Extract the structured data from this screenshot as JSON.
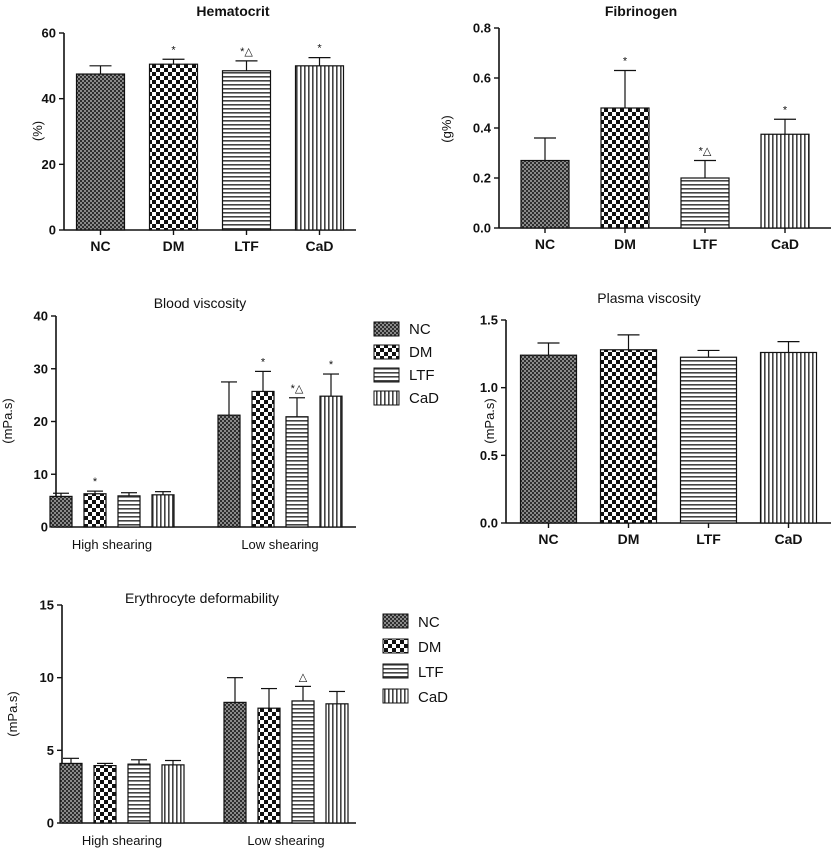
{
  "chart_data": [
    {
      "id": "hematocrit",
      "type": "bar",
      "title": "Hematocrit",
      "ylabel": "(%)",
      "ylim": [
        0,
        60
      ],
      "yticks": [
        0,
        20,
        40,
        60
      ],
      "ytick_labels": [
        "0",
        "20",
        "40",
        "60"
      ],
      "categories": [
        "NC",
        "DM",
        "LTF",
        "CaD"
      ],
      "series": [
        {
          "name": "Hematocrit",
          "values": [
            47.5,
            50.5,
            48.5,
            50.0
          ],
          "errors": [
            2.5,
            1.5,
            3.0,
            2.5
          ],
          "annotations": [
            "",
            "*",
            "*△",
            "*"
          ]
        }
      ]
    },
    {
      "id": "fibrinogen",
      "type": "bar",
      "title": "Fibrinogen",
      "ylabel": "(g%)",
      "ylim": [
        0,
        0.8
      ],
      "yticks": [
        0,
        0.2,
        0.4,
        0.6,
        0.8
      ],
      "ytick_labels": [
        "0.0",
        "0.2",
        "0.4",
        "0.6",
        "0.8"
      ],
      "categories": [
        "NC",
        "DM",
        "LTF",
        "CaD"
      ],
      "series": [
        {
          "name": "Fibrinogen",
          "values": [
            0.27,
            0.48,
            0.2,
            0.375
          ],
          "errors": [
            0.09,
            0.15,
            0.07,
            0.06
          ],
          "annotations": [
            "",
            "*",
            "*△",
            "*"
          ]
        }
      ]
    },
    {
      "id": "blood-viscosity",
      "type": "bar",
      "title": "Blood viscosity",
      "ylabel": "(mPa.s)",
      "ylim": [
        0,
        40
      ],
      "yticks": [
        0,
        10,
        20,
        30,
        40
      ],
      "ytick_labels": [
        "0",
        "10",
        "20",
        "30",
        "40"
      ],
      "categories": [
        "High shearing",
        "Low shearing"
      ],
      "legend": [
        "NC",
        "DM",
        "LTF",
        "CaD"
      ],
      "series": [
        {
          "name": "NC",
          "values": [
            5.8,
            21.2
          ],
          "errors": [
            0.6,
            6.3
          ],
          "annotations": [
            "",
            ""
          ]
        },
        {
          "name": "DM",
          "values": [
            6.3,
            25.7
          ],
          "errors": [
            0.5,
            3.8
          ],
          "annotations": [
            "*",
            "*"
          ]
        },
        {
          "name": "LTF",
          "values": [
            5.9,
            20.9
          ],
          "errors": [
            0.6,
            3.6
          ],
          "annotations": [
            "",
            "*△"
          ]
        },
        {
          "name": "CaD",
          "values": [
            6.1,
            24.8
          ],
          "errors": [
            0.6,
            4.2
          ],
          "annotations": [
            "",
            "*"
          ]
        }
      ]
    },
    {
      "id": "plasma-viscosity",
      "type": "bar",
      "title": "Plasma viscosity",
      "ylabel": "(mPa.s)",
      "ylim": [
        0,
        1.5
      ],
      "yticks": [
        0,
        0.5,
        1.0,
        1.5
      ],
      "ytick_labels": [
        "0.0",
        "0.5",
        "1.0",
        "1.5"
      ],
      "categories": [
        "NC",
        "DM",
        "LTF",
        "CaD"
      ],
      "series": [
        {
          "name": "Plasma viscosity",
          "values": [
            1.24,
            1.28,
            1.225,
            1.26
          ],
          "errors": [
            0.09,
            0.11,
            0.05,
            0.08
          ],
          "annotations": [
            "",
            "",
            "",
            ""
          ]
        }
      ]
    },
    {
      "id": "erythrocyte-deformability",
      "type": "bar",
      "title": "Erythrocyte deformability",
      "ylabel": "(mPa.s)",
      "ylim": [
        0,
        15
      ],
      "yticks": [
        0,
        5,
        10,
        15
      ],
      "ytick_labels": [
        "0",
        "5",
        "10",
        "15"
      ],
      "categories": [
        "High shearing",
        "Low shearing"
      ],
      "legend": [
        "NC",
        "DM",
        "LTF",
        "CaD"
      ],
      "series": [
        {
          "name": "NC",
          "values": [
            4.1,
            8.3
          ],
          "errors": [
            0.35,
            1.7
          ],
          "annotations": [
            "",
            ""
          ]
        },
        {
          "name": "DM",
          "values": [
            3.95,
            7.9
          ],
          "errors": [
            0.15,
            1.35
          ],
          "annotations": [
            "",
            ""
          ]
        },
        {
          "name": "LTF",
          "values": [
            4.05,
            8.4
          ],
          "errors": [
            0.3,
            1.0
          ],
          "annotations": [
            "",
            "△"
          ]
        },
        {
          "name": "CaD",
          "values": [
            4.0,
            8.2
          ],
          "errors": [
            0.3,
            0.85
          ],
          "annotations": [
            "",
            ""
          ]
        }
      ]
    }
  ],
  "colors": {
    "NC": "#4a4a4a",
    "DM": "#1a1a1a",
    "LTF": "#5a5a5a",
    "CaD": "#5a5a5a",
    "axis": "#111111"
  }
}
